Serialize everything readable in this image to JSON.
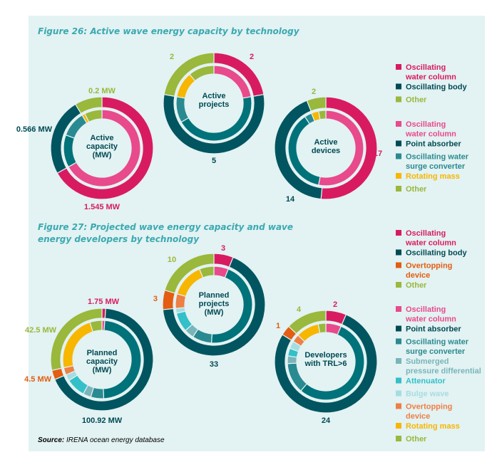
{
  "figure_26_title": "Figure 26: Active wave energy capacity by technology",
  "figure_27_title_line1": "Figure 27: Projected wave energy capacity and wave",
  "figure_27_title_line2": "energy developers by technology",
  "source_label": "Source:",
  "source_text": "IRENA ocean energy database",
  "colors": {
    "owc": "#d81b60",
    "owc_inner": "#e84a8c",
    "body": "#005560",
    "point_absorber": "#00727a",
    "oswc": "#2a8a91",
    "spd": "#79b5bb",
    "attenuator": "#33c0c8",
    "bulge": "#a5dde1",
    "overtopping": "#e35d12",
    "overtopping_inner": "#ee7f45",
    "rotating": "#f7b600",
    "other": "#99b83c"
  },
  "legends": {
    "fig26_outer": [
      {
        "text1": "Oscillating",
        "text2": "water column",
        "color": "#d81b60"
      },
      {
        "text1": "Oscillating body",
        "text2": "",
        "color": "#005560"
      },
      {
        "text1": "Other",
        "text2": "",
        "color": "#99b83c"
      }
    ],
    "fig26_inner": [
      {
        "text1": "Oscillating",
        "text2": "water column",
        "color": "#e84a8c"
      },
      {
        "text1": "Point absorber",
        "text2": "",
        "color": "#00727a"
      },
      {
        "text1": "Oscillating water",
        "text2": "surge converter",
        "color": "#2a8a91"
      },
      {
        "text1": "Rotating mass",
        "text2": "",
        "color": "#f7b600"
      },
      {
        "text1": "Other",
        "text2": "",
        "color": "#99b83c"
      }
    ],
    "fig27_outer": [
      {
        "text1": "Oscillating",
        "text2": "water column",
        "color": "#d81b60"
      },
      {
        "text1": "Oscillating body",
        "text2": "",
        "color": "#005560"
      },
      {
        "text1": "Overtopping",
        "text2": "device",
        "color": "#e35d12"
      },
      {
        "text1": "Other",
        "text2": "",
        "color": "#99b83c"
      }
    ],
    "fig27_inner": [
      {
        "text1": "Oscillating",
        "text2": "water column",
        "color": "#e84a8c"
      },
      {
        "text1": "Point absorber",
        "text2": "",
        "color": "#00727a"
      },
      {
        "text1": "Oscillating water",
        "text2": "surge converter",
        "color": "#2a8a91"
      },
      {
        "text1": "Submerged",
        "text2": "pressure differential",
        "color": "#79b5bb"
      },
      {
        "text1": "Attenuator",
        "text2": "",
        "color": "#33c0c8"
      },
      {
        "text1": "Bulge wave",
        "text2": "",
        "color": "#a5dde1"
      },
      {
        "text1": "Overtopping",
        "text2": "device",
        "color": "#ee7f45"
      },
      {
        "text1": "Rotating mass",
        "text2": "",
        "color": "#f7b600"
      },
      {
        "text1": "Other",
        "text2": "",
        "color": "#99b83c"
      }
    ]
  },
  "chart_data": [
    {
      "type": "pie",
      "center_label": [
        "Active",
        "capacity",
        "(MW)"
      ],
      "outer": [
        {
          "name": "Oscillating water column",
          "value": 1.545,
          "color": "#d81b60"
        },
        {
          "name": "Oscillating body",
          "value": 0.566,
          "color": "#005560"
        },
        {
          "name": "Other",
          "value": 0.2,
          "color": "#99b83c"
        }
      ],
      "inner": [
        {
          "name": "Oscillating water column",
          "value": 1.545,
          "color": "#e84a8c"
        },
        {
          "name": "Point absorber",
          "value": 0.316,
          "color": "#00727a"
        },
        {
          "name": "Oscillating water surge converter",
          "value": 0.25,
          "color": "#2a8a91"
        },
        {
          "name": "Rotating mass",
          "value": 0.03,
          "color": "#f7b600"
        },
        {
          "name": "Other",
          "value": 0.17,
          "color": "#99b83c"
        }
      ],
      "labels": [
        {
          "text": "0.2 MW",
          "color": "#99b83c"
        },
        {
          "text": "0.566 MW",
          "color": "#004a55"
        },
        {
          "text": "1.545 MW",
          "color": "#d81b60"
        }
      ]
    },
    {
      "type": "pie",
      "center_label": [
        "Active",
        "projects"
      ],
      "outer": [
        {
          "name": "Oscillating water column",
          "value": 2,
          "color": "#d81b60"
        },
        {
          "name": "Oscillating body",
          "value": 5,
          "color": "#005560"
        },
        {
          "name": "Other",
          "value": 2,
          "color": "#99b83c"
        }
      ],
      "inner": [
        {
          "name": "Oscillating water column",
          "value": 2,
          "color": "#e84a8c"
        },
        {
          "name": "Point absorber",
          "value": 4,
          "color": "#00727a"
        },
        {
          "name": "Oscillating water surge converter",
          "value": 1,
          "color": "#2a8a91"
        },
        {
          "name": "Rotating mass",
          "value": 1,
          "color": "#f7b600"
        },
        {
          "name": "Other",
          "value": 1,
          "color": "#99b83c"
        }
      ],
      "labels": [
        {
          "text": "2",
          "color": "#d81b60"
        },
        {
          "text": "5",
          "color": "#004a55"
        },
        {
          "text": "2",
          "color": "#99b83c"
        }
      ]
    },
    {
      "type": "pie",
      "center_label": [
        "Active",
        "devices"
      ],
      "outer": [
        {
          "name": "Oscillating water column",
          "value": 17,
          "color": "#d81b60"
        },
        {
          "name": "Oscillating body",
          "value": 14,
          "color": "#005560"
        },
        {
          "name": "Other",
          "value": 2,
          "color": "#99b83c"
        }
      ],
      "inner": [
        {
          "name": "Oscillating water column",
          "value": 17,
          "color": "#e84a8c"
        },
        {
          "name": "Point absorber",
          "value": 12,
          "color": "#00727a"
        },
        {
          "name": "Oscillating water surge converter",
          "value": 1,
          "color": "#2a8a91"
        },
        {
          "name": "Rotating mass",
          "value": 1,
          "color": "#f7b600"
        },
        {
          "name": "Other",
          "value": 1,
          "color": "#99b83c"
        }
      ],
      "labels": [
        {
          "text": "2",
          "color": "#99b83c"
        },
        {
          "text": "17",
          "color": "#d81b60"
        },
        {
          "text": "14",
          "color": "#004a55"
        }
      ]
    },
    {
      "type": "pie",
      "center_label": [
        "Planned",
        "capacity",
        "(MW)"
      ],
      "outer": [
        {
          "name": "Oscillating water column",
          "value": 1.75,
          "color": "#d81b60"
        },
        {
          "name": "Oscillating body",
          "value": 100.92,
          "color": "#005560"
        },
        {
          "name": "Overtopping device",
          "value": 4.5,
          "color": "#e35d12"
        },
        {
          "name": "Other",
          "value": 42.5,
          "color": "#99b83c"
        }
      ],
      "inner": [
        {
          "name": "Oscillating water column",
          "value": 1.75,
          "color": "#e84a8c"
        },
        {
          "name": "Point absorber",
          "value": 72,
          "color": "#00727a"
        },
        {
          "name": "Oscillating water surge converter",
          "value": 8,
          "color": "#2a8a91"
        },
        {
          "name": "Submerged pressure differential",
          "value": 5,
          "color": "#79b5bb"
        },
        {
          "name": "Attenuator",
          "value": 12,
          "color": "#33c0c8"
        },
        {
          "name": "Bulge wave",
          "value": 3.92,
          "color": "#a5dde1"
        },
        {
          "name": "Overtopping device",
          "value": 4.5,
          "color": "#ee7f45"
        },
        {
          "name": "Rotating mass",
          "value": 35,
          "color": "#f7b600"
        },
        {
          "name": "Other",
          "value": 7.5,
          "color": "#99b83c"
        }
      ],
      "labels": [
        {
          "text": "1.75 MW",
          "color": "#d81b60"
        },
        {
          "text": "100.92 MW",
          "color": "#004a55"
        },
        {
          "text": "4.5 MW",
          "color": "#e35d12"
        },
        {
          "text": "42.5 MW",
          "color": "#99b83c"
        }
      ]
    },
    {
      "type": "pie",
      "center_label": [
        "Planned",
        "projects",
        "(MW)"
      ],
      "outer": [
        {
          "name": "Oscillating water column",
          "value": 3,
          "color": "#d81b60"
        },
        {
          "name": "Oscillating body",
          "value": 33,
          "color": "#005560"
        },
        {
          "name": "Overtopping device",
          "value": 3,
          "color": "#e35d12"
        },
        {
          "name": "Other",
          "value": 10,
          "color": "#99b83c"
        }
      ],
      "inner": [
        {
          "name": "Oscillating water column",
          "value": 3,
          "color": "#e84a8c"
        },
        {
          "name": "Point absorber",
          "value": 22,
          "color": "#00727a"
        },
        {
          "name": "Oscillating water surge converter",
          "value": 4,
          "color": "#2a8a91"
        },
        {
          "name": "Submerged pressure differential",
          "value": 2,
          "color": "#79b5bb"
        },
        {
          "name": "Attenuator",
          "value": 4,
          "color": "#33c0c8"
        },
        {
          "name": "Bulge wave",
          "value": 1,
          "color": "#a5dde1"
        },
        {
          "name": "Overtopping device",
          "value": 3,
          "color": "#ee7f45"
        },
        {
          "name": "Rotating mass",
          "value": 7,
          "color": "#f7b600"
        },
        {
          "name": "Other",
          "value": 3,
          "color": "#99b83c"
        }
      ],
      "labels": [
        {
          "text": "3",
          "color": "#d81b60"
        },
        {
          "text": "33",
          "color": "#004a55"
        },
        {
          "text": "3",
          "color": "#e35d12"
        },
        {
          "text": "10",
          "color": "#99b83c"
        }
      ]
    },
    {
      "type": "pie",
      "center_label": [
        "Developers",
        "with TRL>6"
      ],
      "outer": [
        {
          "name": "Oscillating water column",
          "value": 2,
          "color": "#d81b60"
        },
        {
          "name": "Oscillating body",
          "value": 24,
          "color": "#005560"
        },
        {
          "name": "Overtopping device",
          "value": 1,
          "color": "#e35d12"
        },
        {
          "name": "Other",
          "value": 4,
          "color": "#99b83c"
        }
      ],
      "inner": [
        {
          "name": "Oscillating water column",
          "value": 2,
          "color": "#e84a8c"
        },
        {
          "name": "Point absorber",
          "value": 17,
          "color": "#00727a"
        },
        {
          "name": "Oscillating water surge converter",
          "value": 4,
          "color": "#2a8a91"
        },
        {
          "name": "Submerged pressure differential",
          "value": 1,
          "color": "#79b5bb"
        },
        {
          "name": "Attenuator",
          "value": 1,
          "color": "#33c0c8"
        },
        {
          "name": "Bulge wave",
          "value": 1,
          "color": "#a5dde1"
        },
        {
          "name": "Overtopping device",
          "value": 1,
          "color": "#ee7f45"
        },
        {
          "name": "Rotating mass",
          "value": 3,
          "color": "#f7b600"
        },
        {
          "name": "Other",
          "value": 1,
          "color": "#99b83c"
        }
      ],
      "labels": [
        {
          "text": "2",
          "color": "#d81b60"
        },
        {
          "text": "24",
          "color": "#004a55"
        },
        {
          "text": "1",
          "color": "#e35d12"
        },
        {
          "text": "4",
          "color": "#99b83c"
        }
      ]
    }
  ]
}
